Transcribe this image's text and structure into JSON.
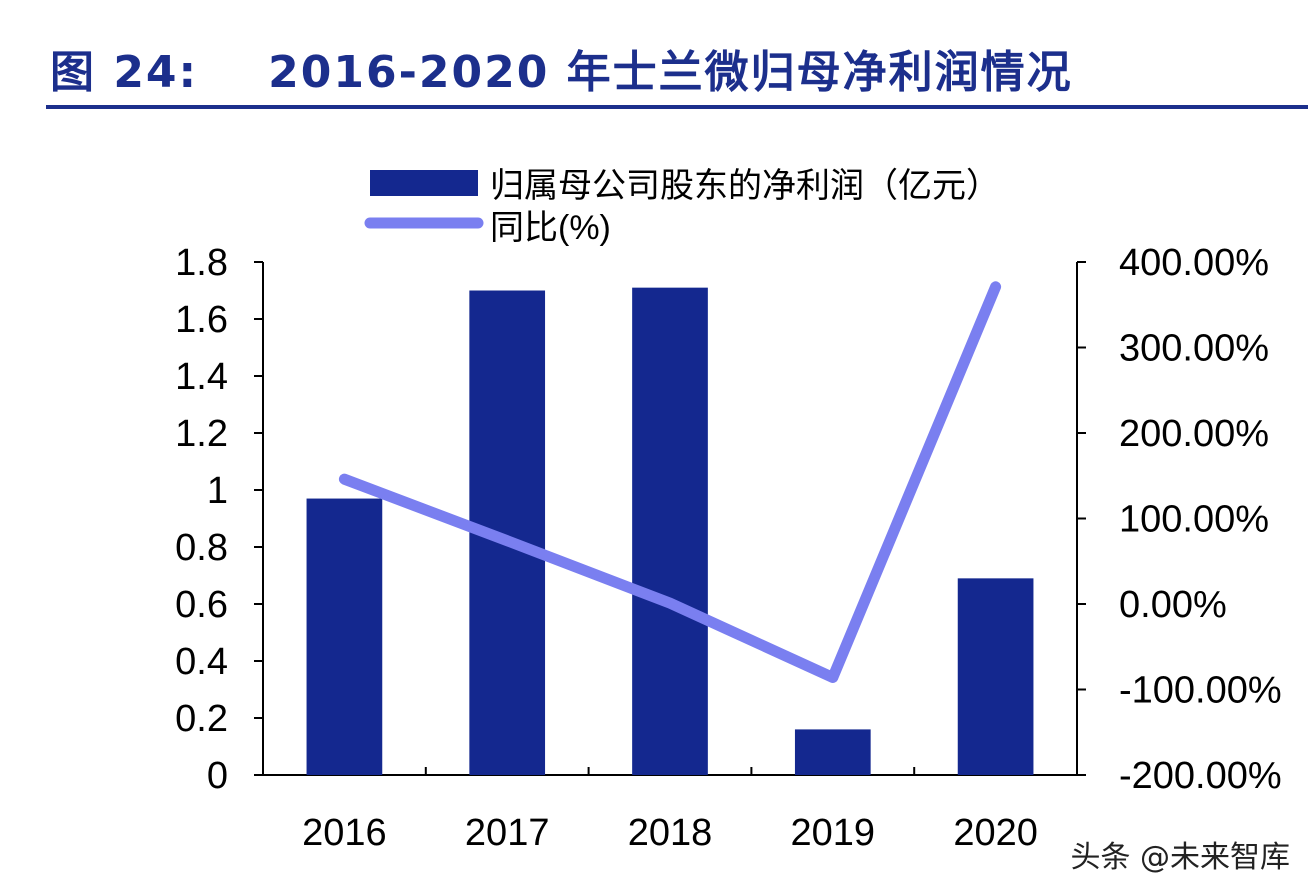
{
  "figure": {
    "label": "图 24:",
    "title": "2016-2020 年士兰微归母净利润情况"
  },
  "colors": {
    "title": "#1c2f8c",
    "bar": "#14288f",
    "line": "#7a7ff0",
    "axis": "#000000"
  },
  "chart_data": {
    "type": "bar",
    "title": "2016-2020 年士兰微归母净利润情况",
    "categories": [
      "2016",
      "2017",
      "2018",
      "2019",
      "2020"
    ],
    "series": [
      {
        "name": "归属母公司股东的净利润（亿元）",
        "type": "bar",
        "axis": "left",
        "values": [
          0.97,
          1.7,
          1.71,
          0.16,
          0.69
        ]
      },
      {
        "name": "同比(%)",
        "type": "line",
        "axis": "right",
        "values": [
          146.0,
          74.0,
          1.0,
          -86.0,
          371.0
        ]
      }
    ],
    "y_left": {
      "lim": [
        0,
        1.8
      ],
      "ticks": [
        0,
        0.2,
        0.4,
        0.6,
        0.8,
        1,
        1.2,
        1.4,
        1.6,
        1.8
      ],
      "tick_labels": [
        "0",
        "0.2",
        "0.4",
        "0.6",
        "0.8",
        "1",
        "1.2",
        "1.4",
        "1.6",
        "1.8"
      ]
    },
    "y_right": {
      "lim": [
        -200,
        400
      ],
      "ticks": [
        -200,
        -100,
        0,
        100,
        200,
        300,
        400
      ],
      "tick_labels": [
        "-200.00%",
        "-100.00%",
        "0.00%",
        "100.00%",
        "200.00%",
        "300.00%",
        "400.00%"
      ]
    },
    "legend": [
      "归属母公司股东的净利润（亿元）",
      "同比(%)"
    ],
    "legend_position": "top",
    "grid": false
  },
  "watermark": "头条 @未来智库"
}
